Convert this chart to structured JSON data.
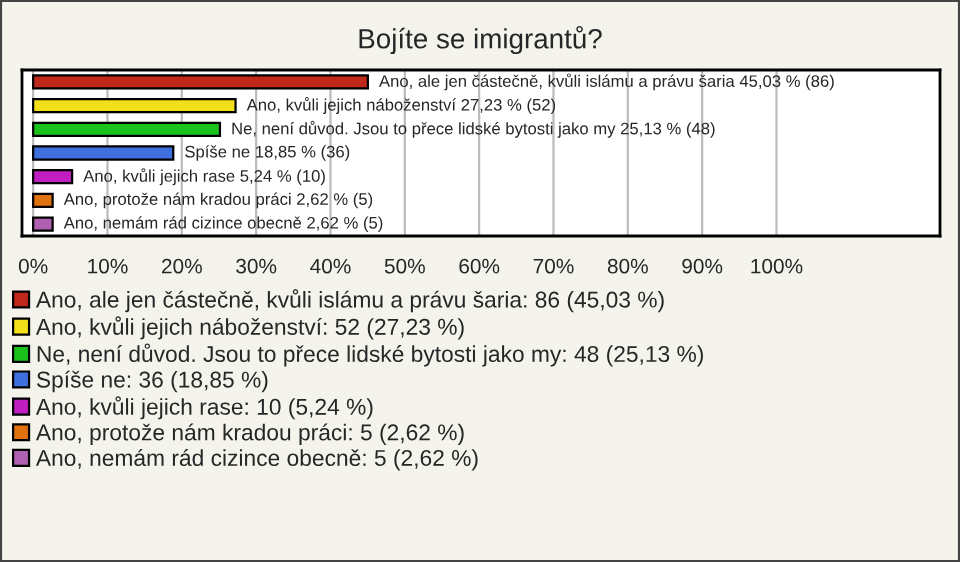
{
  "chart_data": {
    "type": "bar",
    "orientation": "horizontal",
    "title": "Bojíte se imigrantů?",
    "categories": [
      null,
      null,
      null,
      null,
      null,
      null,
      null
    ],
    "series": [
      {
        "name": "Ano, ale jen částečně, kvůli islámu a právu šaria: 86 (45,03 %)",
        "color": "#c0281b",
        "values": [
          45.03,
          null,
          null,
          null,
          null,
          null,
          null
        ],
        "value_labels": [
          "Ano, ale jen částečně, kvůli islámu a právu šaria 45,03 % (86)",
          null,
          null,
          null,
          null,
          null,
          null
        ]
      },
      {
        "name": "Ano, kvůli jejich náboženství: 52 (27,23 %)",
        "color": "#f2e01a",
        "values": [
          null,
          27.23,
          null,
          null,
          null,
          null,
          null
        ],
        "value_labels": [
          null,
          "Ano, kvůli jejich náboženství 27,23 % (52)",
          null,
          null,
          null,
          null,
          null
        ]
      },
      {
        "name": "Ne, není důvod. Jsou to přece lidské bytosti jako my: 48 (25,13 %)",
        "color": "#1cc21c",
        "values": [
          null,
          null,
          25.13,
          null,
          null,
          null,
          null
        ],
        "value_labels": [
          null,
          null,
          "Ne, není důvod. Jsou to přece lidské bytosti jako my 25,13 % (48)",
          null,
          null,
          null,
          null
        ]
      },
      {
        "name": "Spíše ne: 36 (18,85 %)",
        "color": "#4070e0",
        "values": [
          null,
          null,
          null,
          18.85,
          null,
          null,
          null
        ],
        "value_labels": [
          null,
          null,
          null,
          "Spíše ne 18,85 % (36)",
          null,
          null,
          null
        ]
      },
      {
        "name": "Ano, kvůli jejich rase: 10 (5,24 %)",
        "color": "#c01ec0",
        "values": [
          null,
          null,
          null,
          null,
          5.24,
          null,
          null
        ],
        "value_labels": [
          null,
          null,
          null,
          null,
          "Ano, kvůli jejich rase 5,24 % (10)",
          null,
          null
        ]
      },
      {
        "name": "Ano, protože nám kradou práci: 5 (2,62 %)",
        "color": "#e0720f",
        "values": [
          null,
          null,
          null,
          null,
          null,
          2.62,
          null
        ],
        "value_labels": [
          null,
          null,
          null,
          null,
          null,
          "Ano, protože nám kradou práci 2,62 % (5)",
          null
        ]
      },
      {
        "name": "Ano, nemám rád cizince obecně: 5 (2,62 %)",
        "color": "#b060b0",
        "values": [
          null,
          null,
          null,
          null,
          null,
          null,
          2.62
        ],
        "value_labels": [
          null,
          null,
          null,
          null,
          null,
          null,
          "Ano, nemám rád cizince obecně 2,62 % (5)"
        ]
      }
    ],
    "xlim": [
      -1.5,
      122
    ],
    "xticks": [
      {
        "value": 0,
        "label": "0%"
      },
      {
        "value": 10,
        "label": "10%"
      },
      {
        "value": 20,
        "label": "20%"
      },
      {
        "value": 30,
        "label": "30%"
      },
      {
        "value": 40,
        "label": "40%"
      },
      {
        "value": 50,
        "label": "50%"
      },
      {
        "value": 60,
        "label": "60%"
      },
      {
        "value": 70,
        "label": "70%"
      },
      {
        "value": 80,
        "label": "80%"
      },
      {
        "value": 90,
        "label": "90%"
      },
      {
        "value": 100,
        "label": "100%"
      }
    ],
    "grid": "x",
    "legend": "bottom",
    "tick_labels": "x"
  }
}
